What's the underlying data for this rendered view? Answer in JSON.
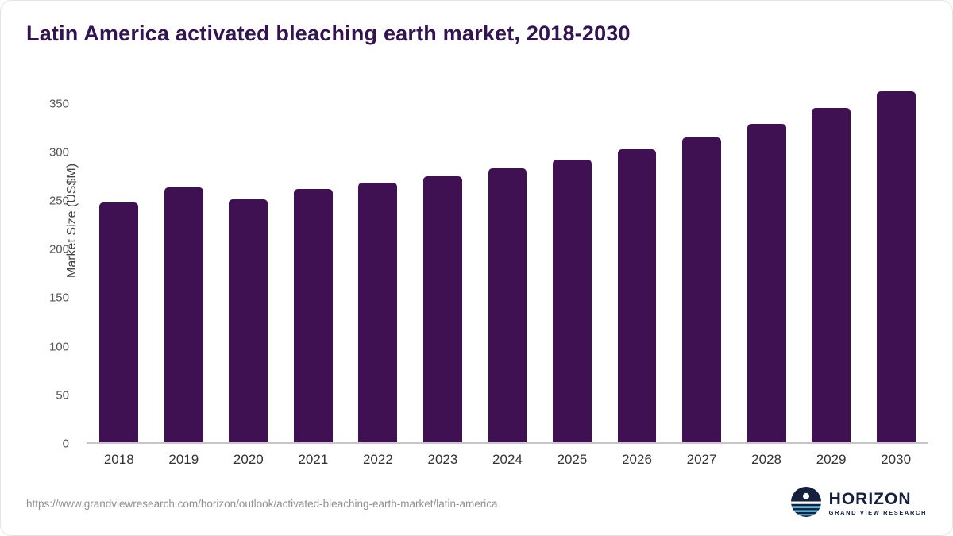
{
  "title": "Latin America activated bleaching earth market, 2018-2030",
  "chart_data": {
    "type": "bar",
    "title": "Latin America activated bleaching earth market, 2018-2030",
    "categories": [
      "2018",
      "2019",
      "2020",
      "2021",
      "2022",
      "2023",
      "2024",
      "2025",
      "2026",
      "2027",
      "2028",
      "2029",
      "2030"
    ],
    "values": [
      248,
      263,
      251,
      262,
      268,
      275,
      283,
      292,
      303,
      315,
      329,
      345,
      363
    ],
    "xlabel": "",
    "ylabel": "Market Size (US$M)",
    "ylim": [
      0,
      370
    ],
    "yticks": [
      0,
      50,
      100,
      150,
      200,
      250,
      300,
      350
    ],
    "bar_color": "#401152",
    "grid": false,
    "legend": false
  },
  "footer": {
    "source_url": "https://www.grandviewresearch.com/horizon/outlook/activated-bleaching-earth-market/latin-america",
    "logo_title": "HORIZON",
    "logo_subtitle": "GRAND VIEW RESEARCH"
  },
  "colors": {
    "bar": "#401152",
    "title": "#321450",
    "axis_line": "#c6c6c6",
    "logo_navy": "#15213c",
    "logo_water": "#5bb7dd"
  }
}
